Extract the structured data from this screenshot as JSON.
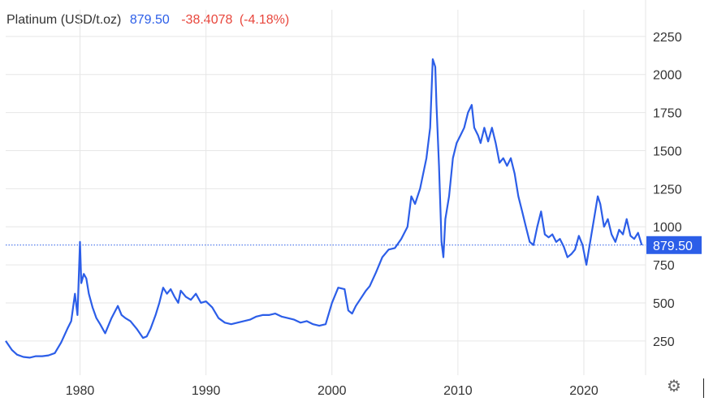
{
  "header": {
    "instrument": "Platinum (USD/t.oz)",
    "price": "879.50",
    "change": "-38.4078",
    "change_pct": "(-4.18%)"
  },
  "colors": {
    "line": "#2c5ee8",
    "price_text": "#2c5ee8",
    "change_text": "#e8463c",
    "grid": "#e6e6e6",
    "badge_bg": "#2c5ee8",
    "badge_text": "#ffffff"
  },
  "last_price_label": "879.50",
  "settings_icon": "gear-icon",
  "chart_data": {
    "type": "line",
    "title": "",
    "xlabel": "",
    "ylabel": "",
    "xlim": [
      1974.1,
      2024.9
    ],
    "ylim": [
      25,
      2425
    ],
    "grid": true,
    "y_axis_position": "right",
    "y_ticks": [
      250,
      500,
      750,
      1000,
      1250,
      1500,
      1750,
      2000,
      2250
    ],
    "x_ticks": [
      1980,
      1990,
      2000,
      2010,
      2020
    ],
    "last_value": 879.5,
    "series": [
      {
        "x": [
          1974.1,
          1974.6,
          1975.0,
          1975.5,
          1976.0,
          1976.5,
          1977.0,
          1977.5,
          1978.0,
          1978.5,
          1979.0,
          1979.3,
          1979.6,
          1979.8,
          1980.0,
          1980.1,
          1980.3,
          1980.5,
          1980.7,
          1981.0,
          1981.3,
          1981.6,
          1982.0,
          1982.5,
          1983.0,
          1983.3,
          1983.6,
          1984.0,
          1984.5,
          1985.0,
          1985.3,
          1985.6,
          1986.0,
          1986.3,
          1986.6,
          1986.9,
          1987.2,
          1987.5,
          1987.8,
          1988.0,
          1988.4,
          1988.8,
          1989.2,
          1989.6,
          1990.0,
          1990.5,
          1991.0,
          1991.5,
          1992.0,
          1992.5,
          1993.0,
          1993.5,
          1994.0,
          1994.5,
          1995.0,
          1995.5,
          1996.0,
          1996.5,
          1997.0,
          1997.5,
          1998.0,
          1998.5,
          1999.0,
          1999.5,
          2000.0,
          2000.5,
          2001.0,
          2001.3,
          2001.6,
          2001.9,
          2002.3,
          2002.7,
          2003.0,
          2003.5,
          2004.0,
          2004.5,
          2005.0,
          2005.5,
          2006.0,
          2006.3,
          2006.6,
          2007.0,
          2007.5,
          2007.8,
          2008.0,
          2008.2,
          2008.3,
          2008.5,
          2008.7,
          2008.85,
          2009.0,
          2009.3,
          2009.6,
          2009.9,
          2010.2,
          2010.5,
          2010.8,
          2011.1,
          2011.3,
          2011.6,
          2011.8,
          2012.1,
          2012.4,
          2012.7,
          2013.0,
          2013.3,
          2013.6,
          2013.9,
          2014.2,
          2014.5,
          2014.8,
          2015.1,
          2015.4,
          2015.7,
          2016.0,
          2016.3,
          2016.6,
          2016.9,
          2017.2,
          2017.5,
          2017.8,
          2018.1,
          2018.4,
          2018.7,
          2019.0,
          2019.3,
          2019.6,
          2019.9,
          2020.2,
          2020.4,
          2020.6,
          2020.9,
          2021.1,
          2021.3,
          2021.6,
          2021.9,
          2022.2,
          2022.5,
          2022.8,
          2023.1,
          2023.4,
          2023.7,
          2024.0,
          2024.3,
          2024.6
        ],
        "y": [
          250,
          190,
          160,
          145,
          140,
          150,
          150,
          155,
          170,
          240,
          330,
          380,
          560,
          420,
          900,
          630,
          690,
          660,
          560,
          470,
          400,
          360,
          300,
          400,
          480,
          420,
          400,
          380,
          330,
          270,
          280,
          330,
          420,
          500,
          600,
          560,
          590,
          540,
          500,
          580,
          540,
          520,
          560,
          500,
          510,
          470,
          400,
          370,
          360,
          370,
          380,
          390,
          410,
          420,
          420,
          430,
          410,
          400,
          390,
          370,
          380,
          360,
          350,
          360,
          500,
          600,
          590,
          450,
          430,
          480,
          530,
          580,
          610,
          700,
          800,
          850,
          860,
          920,
          1000,
          1200,
          1150,
          1250,
          1450,
          1650,
          2100,
          2050,
          1800,
          1400,
          900,
          800,
          1050,
          1200,
          1450,
          1550,
          1600,
          1650,
          1750,
          1800,
          1650,
          1600,
          1550,
          1650,
          1560,
          1650,
          1550,
          1420,
          1450,
          1400,
          1450,
          1350,
          1200,
          1100,
          1000,
          900,
          880,
          1000,
          1100,
          950,
          930,
          950,
          900,
          920,
          870,
          800,
          820,
          850,
          940,
          880,
          750,
          850,
          950,
          1100,
          1200,
          1150,
          1000,
          1050,
          950,
          900,
          980,
          950,
          1050,
          940,
          920,
          960,
          879.5
        ]
      }
    ]
  }
}
